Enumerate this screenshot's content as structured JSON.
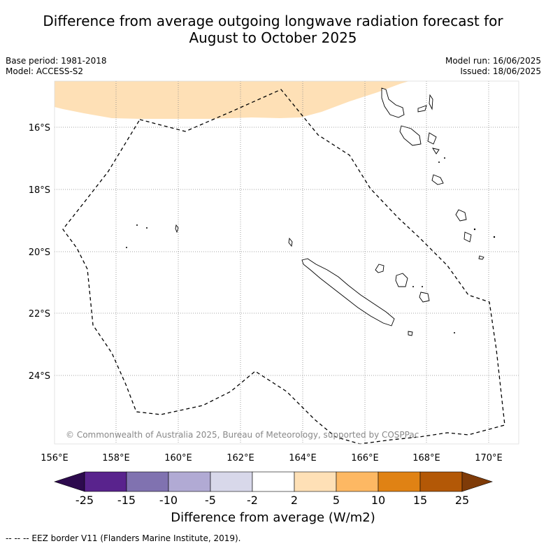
{
  "title_line1": "Difference from average outgoing longwave radiation forecast for",
  "title_line2": "August to October 2025",
  "meta_left": {
    "base_period": "Base period: 1981-2018",
    "model": "Model: ACCESS-S2"
  },
  "meta_right": {
    "model_run": "Model run: 16/06/2025",
    "issued": "Issued: 18/06/2025"
  },
  "copyright": "© Commonwealth of Australia 2025, Bureau of Meteorology, supported by COSPPac",
  "lon_ticks": [
    "156°E",
    "158°E",
    "160°E",
    "162°E",
    "164°E",
    "166°E",
    "168°E",
    "170°E"
  ],
  "lat_ticks": [
    "16°S",
    "18°S",
    "20°S",
    "22°S",
    "24°S"
  ],
  "colorbar": {
    "label": "Difference from average (W/m2)",
    "tick_labels": [
      "-25",
      "-15",
      "-10",
      "-5",
      "-2",
      "2",
      "5",
      "10",
      "15",
      "25"
    ],
    "colors": [
      "#2d0a4e",
      "#59238d",
      "#8072b0",
      "#b1aad4",
      "#d8d8ea",
      "#ffffff",
      "#fee0b6",
      "#fdb863",
      "#e08214",
      "#b35806",
      "#7f3b08"
    ]
  },
  "footnote": "--  --  -- EEZ border V11 (Flanders Marine Institute, 2019)."
}
